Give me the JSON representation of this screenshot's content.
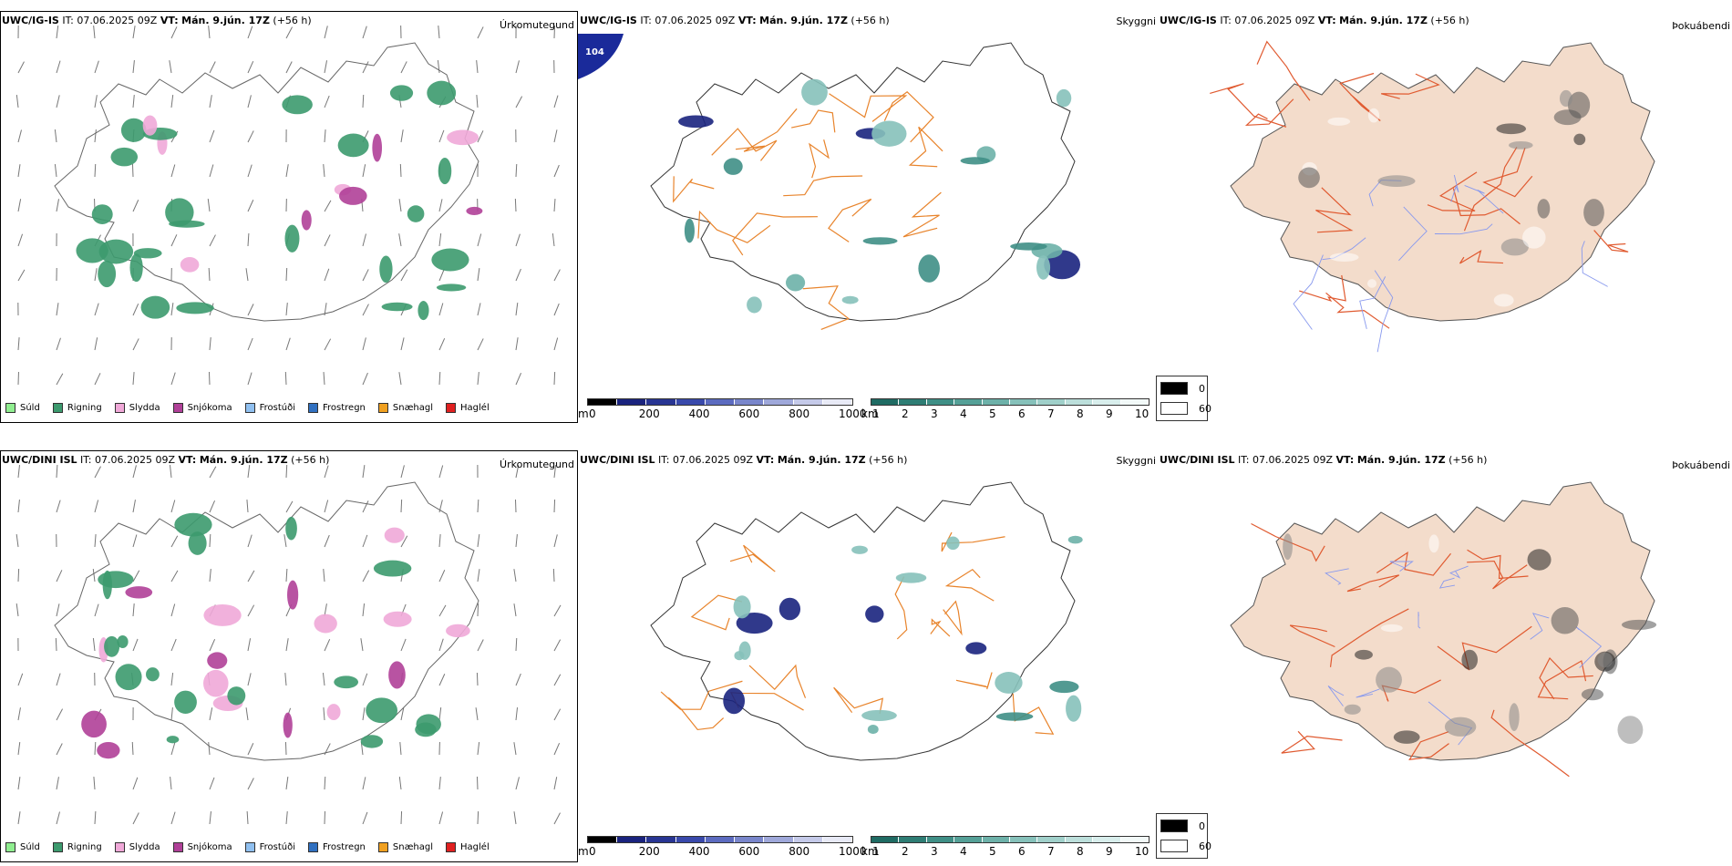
{
  "rows": [
    {
      "model": "UWC/IG-IS",
      "it": "IT: 07.06.2025 09Z",
      "vt_label": "VT:",
      "vt": "Mán. 9.jún. 17Z",
      "lead": "(+56 h)"
    },
    {
      "model": "UWC/DINI ISL",
      "it": "IT: 07.06.2025 09Z",
      "vt_label": "VT:",
      "vt": "Mán. 9.jún. 17Z",
      "lead": "(+56 h)"
    }
  ],
  "panel_titles": {
    "precip": "Úrkomutegund",
    "cloud": "Skyggni",
    "fog": "Þokuábendi"
  },
  "precip_legend": [
    {
      "label": "Súld",
      "color": "#90ee90"
    },
    {
      "label": "Rigning",
      "color": "#3c9a6e"
    },
    {
      "label": "Slydda",
      "color": "#f0a8d8"
    },
    {
      "label": "Snjókoma",
      "color": "#b04098"
    },
    {
      "label": "Frostúði",
      "color": "#90c0f0"
    },
    {
      "label": "Frostregn",
      "color": "#3070c0"
    },
    {
      "label": "Snæhagl",
      "color": "#f0a020"
    },
    {
      "label": "Haglél",
      "color": "#e02020"
    }
  ],
  "cloudbase_bar": {
    "unit": "m",
    "ticks": [
      "0",
      "200",
      "400",
      "600",
      "800",
      "1000"
    ],
    "colors": [
      "#000000",
      "#1a237e",
      "#283593",
      "#3949ab",
      "#5c6bc0",
      "#7986cb",
      "#9fa8da",
      "#c5cae9",
      "#e8eaf6"
    ]
  },
  "visibility_bar": {
    "unit": "km",
    "ticks": [
      "1",
      "2",
      "3",
      "4",
      "5",
      "6",
      "7",
      "8",
      "9",
      "10"
    ],
    "colors": [
      "#1f6b63",
      "#2e7d74",
      "#3f8f86",
      "#55a097",
      "#6db1a9",
      "#86c1ba",
      "#a0d0ca",
      "#bcdfdb",
      "#d8eeec",
      "#f2f9f8"
    ]
  },
  "fog_legend": [
    {
      "label": "0",
      "color": "#000000"
    },
    {
      "label": "60",
      "color": "#ffffff"
    }
  ],
  "inset_value": "104"
}
